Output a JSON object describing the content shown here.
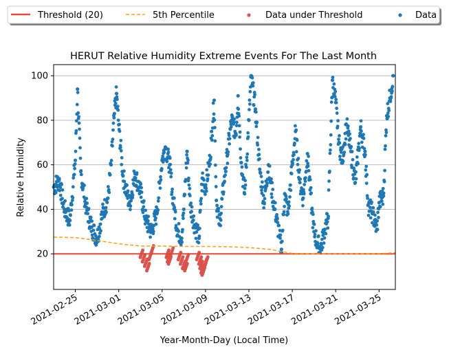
{
  "chart_data": {
    "type": "scatter",
    "title": "HERUT Relative Humidity Extreme Events For The Last Month",
    "xlabel": "Year-Month-Day (Local Time)",
    "ylabel": "Relative Humidity",
    "xlim": [
      "2021-02-23",
      "2021-03-26.5"
    ],
    "ylim": [
      4,
      105
    ],
    "x_ticks": [
      "2021-02-25",
      "2021-03-01",
      "2021-03-05",
      "2021-03-09",
      "2021-03-13",
      "2021-03-17",
      "2021-03-21",
      "2021-03-25"
    ],
    "y_ticks": [
      20,
      40,
      60,
      80,
      100
    ],
    "grid": "y",
    "legend": {
      "placement": "top, outside plot",
      "entries": [
        "Threshold (20)",
        "5th Percentile",
        "Data under Threshold",
        "Data"
      ]
    },
    "colors": {
      "threshold": "#e24a33",
      "percentile": "#ff9f0a",
      "under": "#d9534f",
      "data": "#1f77b4",
      "grid": "#b0b0b0"
    },
    "threshold": 20,
    "percentile_5th": {
      "x": [
        "2021-02-23",
        "2021-02-25",
        "2021-02-27",
        "2021-03-01",
        "2021-03-03",
        "2021-03-05",
        "2021-03-07",
        "2021-03-09",
        "2021-03-11",
        "2021-03-13",
        "2021-03-15",
        "2021-03-16",
        "2021-03-17",
        "2021-03-19",
        "2021-03-21",
        "2021-03-23",
        "2021-03-25",
        "2021-03-26.5"
      ],
      "y": [
        27.5,
        27.3,
        26,
        24.5,
        23.5,
        23.5,
        23.3,
        23.3,
        23.2,
        22.8,
        22,
        21,
        20.2,
        20,
        19.9,
        20,
        20.1,
        20.5
      ]
    },
    "series": [
      {
        "name": "Data",
        "points": [
          [
            "2021-02-23",
            50
          ],
          [
            "2021-02-23.5",
            53
          ],
          [
            "2021-02-24",
            40
          ],
          [
            "2021-02-24.5",
            35
          ],
          [
            "2021-02-25",
            62
          ],
          [
            "2021-02-25.2",
            94
          ],
          [
            "2021-02-25.5",
            57
          ],
          [
            "2021-02-26",
            41
          ],
          [
            "2021-02-26.5",
            32
          ],
          [
            "2021-02-27",
            27
          ],
          [
            "2021-02-27.5",
            38
          ],
          [
            "2021-02-28",
            45
          ],
          [
            "2021-02-28.3",
            60
          ],
          [
            "2021-02-28.6",
            83
          ],
          [
            "2021-02-28.8",
            92
          ],
          [
            "2021-03-01",
            78
          ],
          [
            "2021-03-01.4",
            55
          ],
          [
            "2021-03-02",
            42
          ],
          [
            "2021-03-02.5",
            56
          ],
          [
            "2021-03-03",
            48
          ],
          [
            "2021-03-03.5",
            35
          ],
          [
            "2021-03-04",
            30
          ],
          [
            "2021-03-04.5",
            38
          ],
          [
            "2021-03-05",
            62
          ],
          [
            "2021-03-05.3",
            68
          ],
          [
            "2021-03-05.7",
            60
          ],
          [
            "2021-03-06",
            45
          ],
          [
            "2021-03-06.4",
            31
          ],
          [
            "2021-03-06.8",
            27
          ],
          [
            "2021-03-07",
            40
          ],
          [
            "2021-03-07.3",
            66
          ],
          [
            "2021-03-07.6",
            42
          ],
          [
            "2021-03-08",
            33
          ],
          [
            "2021-03-08.4",
            27
          ],
          [
            "2021-03-08.7",
            54
          ],
          [
            "2021-03-09",
            50
          ],
          [
            "2021-03-09.4",
            62
          ],
          [
            "2021-03-09.8",
            89
          ],
          [
            "2021-03-10",
            44
          ],
          [
            "2021-03-10.3",
            33
          ],
          [
            "2021-03-10.7",
            52
          ],
          [
            "2021-03-11",
            64
          ],
          [
            "2021-03-11.4",
            80
          ],
          [
            "2021-03-11.8",
            74
          ],
          [
            "2021-03-12",
            91
          ],
          [
            "2021-03-12.3",
            61
          ],
          [
            "2021-03-12.6",
            47
          ],
          [
            "2021-03-13",
            80
          ],
          [
            "2021-03-13.2",
            100
          ],
          [
            "2021-03-13.6",
            85
          ],
          [
            "2021-03-14",
            58
          ],
          [
            "2021-03-14.4",
            43
          ],
          [
            "2021-03-14.8",
            60
          ],
          [
            "2021-03-15",
            52
          ],
          [
            "2021-03-15.4",
            40
          ],
          [
            "2021-03-15.8",
            28
          ],
          [
            "2021-03-16",
            22
          ],
          [
            "2021-03-16.3",
            47
          ],
          [
            "2021-03-16.6",
            38
          ],
          [
            "2021-03-17",
            60
          ],
          [
            "2021-03-17.3",
            75
          ],
          [
            "2021-03-17.7",
            52
          ],
          [
            "2021-03-18",
            45
          ],
          [
            "2021-03-18.4",
            65
          ],
          [
            "2021-03-18.8",
            40
          ],
          [
            "2021-03-19",
            30
          ],
          [
            "2021-03-19.3",
            25
          ],
          [
            "2021-03-19.6",
            22
          ],
          [
            "2021-03-20",
            31
          ],
          [
            "2021-03-20.3",
            36
          ],
          [
            "2021-03-20.7",
            98
          ],
          [
            "2021-03-21",
            88
          ],
          [
            "2021-03-21.3",
            70
          ],
          [
            "2021-03-21.6",
            62
          ],
          [
            "2021-03-22",
            78
          ],
          [
            "2021-03-22.4",
            66
          ],
          [
            "2021-03-22.8",
            52
          ],
          [
            "2021-03-23",
            61
          ],
          [
            "2021-03-23.3",
            77
          ],
          [
            "2021-03-23.7",
            66
          ],
          [
            "2021-03-24",
            42
          ],
          [
            "2021-03-24.4",
            38
          ],
          [
            "2021-03-24.8",
            31
          ],
          [
            "2021-03-25",
            43
          ],
          [
            "2021-03-25.4",
            46
          ],
          [
            "2021-03-25.7",
            82
          ],
          [
            "2021-03-26",
            90
          ],
          [
            "2021-03-26.3",
            100
          ]
        ]
      },
      {
        "name": "Data under Threshold",
        "points": [
          [
            "2021-03-03.1",
            20
          ],
          [
            "2021-03-03.3",
            18
          ],
          [
            "2021-03-03.5",
            16
          ],
          [
            "2021-03-03.7",
            14
          ],
          [
            "2021-03-03.9",
            19
          ],
          [
            "2021-03-04.1",
            22
          ],
          [
            "2021-03-05.5",
            20
          ],
          [
            "2021-03-05.6",
            18
          ],
          [
            "2021-03-05.7",
            17
          ],
          [
            "2021-03-05.9",
            21
          ],
          [
            "2021-03-06.6",
            19
          ],
          [
            "2021-03-06.8",
            17
          ],
          [
            "2021-03-07",
            15
          ],
          [
            "2021-03-07.2",
            14
          ],
          [
            "2021-03-07.3",
            18
          ],
          [
            "2021-03-08.3",
            19
          ],
          [
            "2021-03-08.5",
            17
          ],
          [
            "2021-03-08.6",
            15
          ],
          [
            "2021-03-08.7",
            13
          ],
          [
            "2021-03-08.8",
            12
          ],
          [
            "2021-03-08.9",
            14
          ],
          [
            "2021-03-09",
            16
          ],
          [
            "2021-03-09.1",
            17
          ]
        ]
      }
    ]
  }
}
